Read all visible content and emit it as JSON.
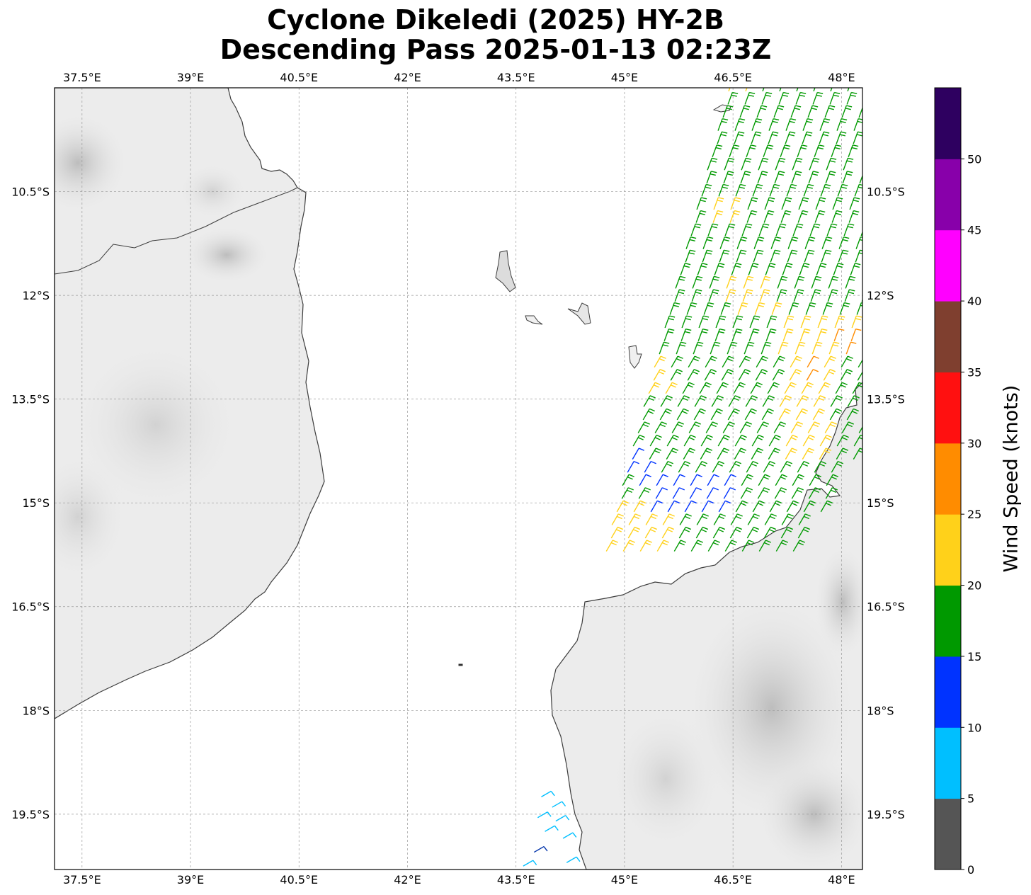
{
  "title": {
    "line1": "Cyclone Dikeledi (2025) HY-2B",
    "line2": "Descending Pass 2025-01-13 02:23Z"
  },
  "map": {
    "lon_range": [
      37.12,
      48.29
    ],
    "lat_range": [
      -20.3,
      -9.0
    ],
    "lon_ticks": [
      "37.5°E",
      "39°E",
      "40.5°E",
      "42°E",
      "43.5°E",
      "45°E",
      "46.5°E",
      "48°E"
    ],
    "lat_ticks": [
      "10.5°S",
      "12°S",
      "13.5°S",
      "15°S",
      "16.5°S",
      "18°S",
      "19.5°S"
    ],
    "grid": "dashed gray",
    "land_shading": "grayscale elevation"
  },
  "colorbar": {
    "label": "Wind Speed (knots)",
    "ticks": [
      "0",
      "5",
      "10",
      "15",
      "20",
      "25",
      "30",
      "35",
      "40",
      "45",
      "50"
    ],
    "colors": [
      "#555555",
      "#00bfff",
      "#0033ff",
      "#009900",
      "#ffd11a",
      "#ff8c00",
      "#ff1010",
      "#7f3f2f",
      "#ff00ff",
      "#8800aa",
      "#2e0060"
    ]
  },
  "wind_barbs": {
    "pass": "descending swath, approx 44.8°E–48.3°E, 9°S–15.8°S",
    "speed_classes_present": [
      "10-15",
      "15-20",
      "20-25",
      "25-30",
      "5-10"
    ],
    "isolated_south_cluster": "approx 43.6°E–44.3°E, 19.2°S–20.3°S, 5-15 knots"
  }
}
